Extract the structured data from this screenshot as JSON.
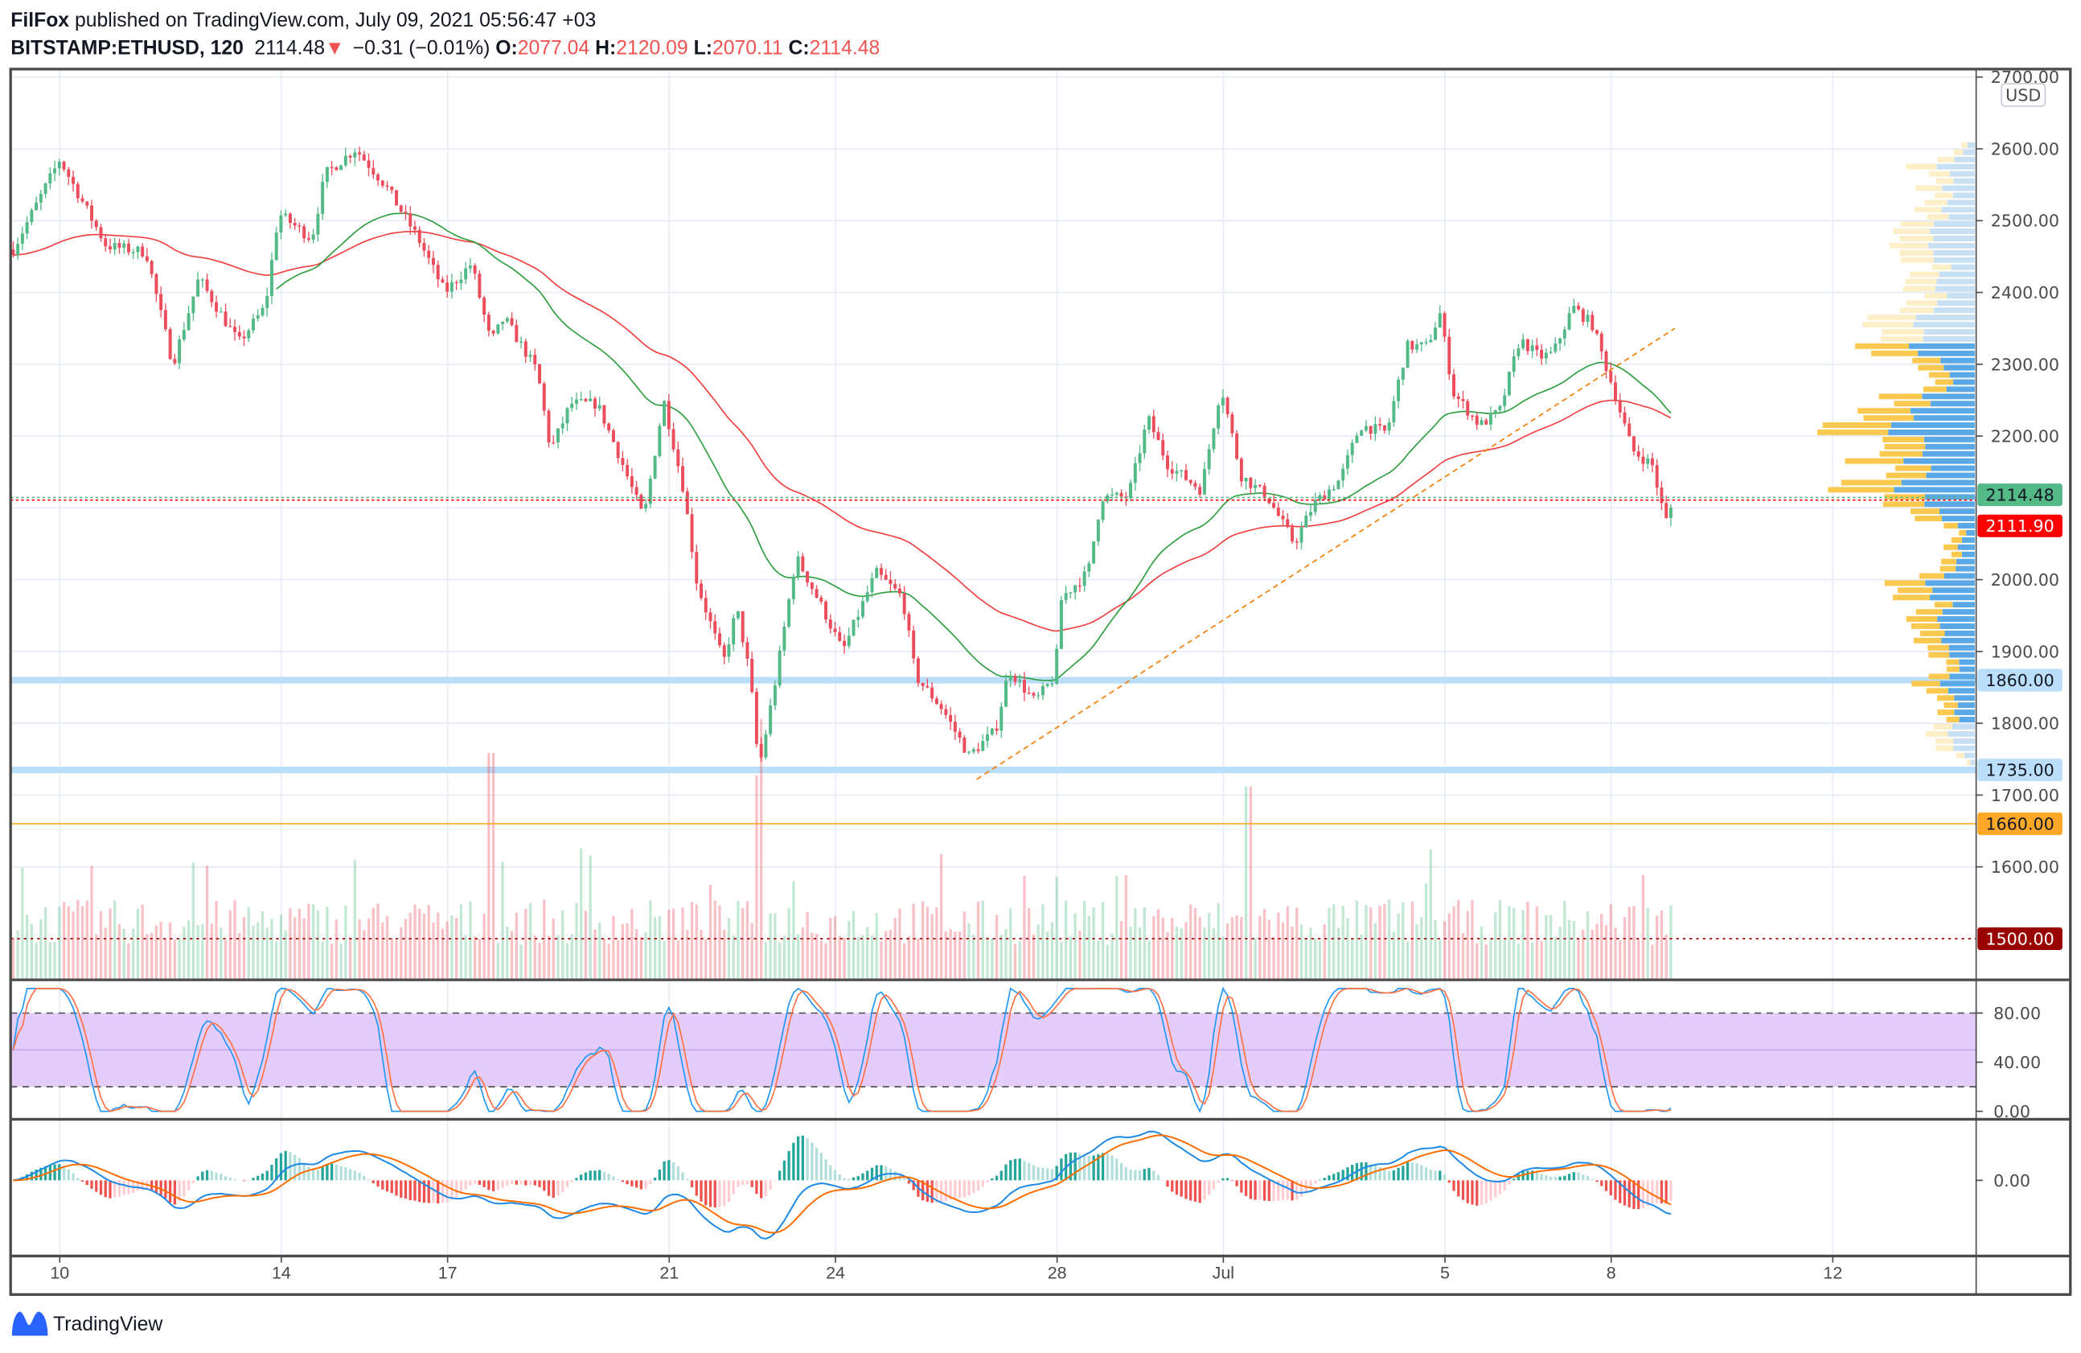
{
  "header": {
    "author": "FilFox",
    "published": " published on TradingView.com, July 09, 2021 05:56:47 +03"
  },
  "legend": {
    "symbol": "BITSTAMP:ETHUSD, 120",
    "last": "2114.48",
    "change": "−0.31 (−0.01%)",
    "o_label": "O:",
    "o": "2077.04",
    "h_label": "H:",
    "h": "2120.09",
    "l_label": "L:",
    "l": "2070.11",
    "c_label": "C:",
    "c": "2114.48"
  },
  "currency_badge": "USD",
  "footer": {
    "brand": "TradingView"
  },
  "colors": {
    "up": "#53b987",
    "down": "#eb4d5c",
    "ma_red": "#ef3f3f",
    "ma_green": "#2e9e3f",
    "trend": "#f57c00",
    "stoch_k": "#2196f3",
    "stoch_d": "#ff7043",
    "band": "#e1c4fa",
    "macd": "#1e88e5",
    "signal": "#ff6d00"
  },
  "chart_data": {
    "type": "candlestick",
    "title": "BITSTAMP:ETHUSD, 120",
    "interval_hours": 2,
    "time_unit": "day of June 2021 (31 = Jul 1)",
    "ylim": [
      1500,
      2700
    ],
    "y_ticks": [
      "2700.00",
      "2600.00",
      "2500.00",
      "2400.00",
      "2300.00",
      "2200.00",
      "2000.00",
      "1900.00",
      "1800.00",
      "1700.00",
      "1600.00"
    ],
    "y_tick_values": [
      2700,
      2600,
      2500,
      2400,
      2300,
      2200,
      2000,
      1900,
      1800,
      1700,
      1600
    ],
    "x_ticks": [
      {
        "label": "10",
        "day": 10
      },
      {
        "label": "14",
        "day": 14
      },
      {
        "label": "17",
        "day": 17
      },
      {
        "label": "21",
        "day": 21
      },
      {
        "label": "24",
        "day": 24
      },
      {
        "label": "28",
        "day": 28
      },
      {
        "label": "Jul",
        "day": 31
      },
      {
        "label": "5",
        "day": 35
      },
      {
        "label": "8",
        "day": 38
      },
      {
        "label": "12",
        "day": 42
      }
    ],
    "price_anchors": [
      [
        9.16,
        2460
      ],
      [
        10,
        2585
      ],
      [
        10.84,
        2465
      ],
      [
        11.56,
        2456
      ],
      [
        12.04,
        2300
      ],
      [
        12.51,
        2420
      ],
      [
        13.23,
        2330
      ],
      [
        13.71,
        2380
      ],
      [
        13.95,
        2510
      ],
      [
        14.55,
        2475
      ],
      [
        14.79,
        2565
      ],
      [
        15.34,
        2600
      ],
      [
        15.87,
        2550
      ],
      [
        16.47,
        2475
      ],
      [
        16.95,
        2400
      ],
      [
        17.43,
        2440
      ],
      [
        17.78,
        2330
      ],
      [
        18.02,
        2365
      ],
      [
        18.62,
        2290
      ],
      [
        18.86,
        2180
      ],
      [
        19.22,
        2245
      ],
      [
        19.7,
        2245
      ],
      [
        20.06,
        2180
      ],
      [
        20.54,
        2085
      ],
      [
        20.9,
        2250
      ],
      [
        21.26,
        2125
      ],
      [
        21.5,
        1995
      ],
      [
        21.98,
        1885
      ],
      [
        22.22,
        1960
      ],
      [
        22.46,
        1865
      ],
      [
        22.62,
        1735
      ],
      [
        22.93,
        1865
      ],
      [
        23.29,
        2032
      ],
      [
        23.77,
        1960
      ],
      [
        24.13,
        1900
      ],
      [
        24.73,
        2010
      ],
      [
        25.21,
        1975
      ],
      [
        25.45,
        1865
      ],
      [
        25.93,
        1820
      ],
      [
        26.41,
        1755
      ],
      [
        26.89,
        1790
      ],
      [
        27.13,
        1875
      ],
      [
        27.6,
        1830
      ],
      [
        27.96,
        1865
      ],
      [
        28.08,
        1975
      ],
      [
        28.56,
        2010
      ],
      [
        28.8,
        2115
      ],
      [
        29.28,
        2115
      ],
      [
        29.64,
        2225
      ],
      [
        30.0,
        2160
      ],
      [
        30.6,
        2125
      ],
      [
        30.96,
        2270
      ],
      [
        31.32,
        2145
      ],
      [
        31.8,
        2115
      ],
      [
        32.28,
        2050
      ],
      [
        32.63,
        2105
      ],
      [
        33.11,
        2140
      ],
      [
        33.47,
        2215
      ],
      [
        33.95,
        2205
      ],
      [
        34.31,
        2325
      ],
      [
        34.67,
        2325
      ],
      [
        34.91,
        2370
      ],
      [
        35.15,
        2260
      ],
      [
        35.63,
        2215
      ],
      [
        35.99,
        2235
      ],
      [
        36.35,
        2335
      ],
      [
        36.71,
        2310
      ],
      [
        36.95,
        2315
      ],
      [
        37.31,
        2380
      ],
      [
        37.66,
        2355
      ],
      [
        38.02,
        2270
      ],
      [
        38.38,
        2180
      ],
      [
        38.74,
        2160
      ],
      [
        38.98,
        2080
      ],
      [
        39.15,
        2114.48
      ]
    ],
    "volume_spikes": [
      [
        17.78,
        1.0
      ],
      [
        22.62,
        0.9
      ],
      [
        25.93,
        0.55
      ],
      [
        28.0,
        0.45
      ],
      [
        31.45,
        0.85
      ],
      [
        34.0,
        0.35
      ]
    ],
    "moving_averages": [
      {
        "name": "MA slow",
        "color": "#ef3f3f",
        "period": 80
      },
      {
        "name": "MA fast",
        "color": "#2e9e3f",
        "period": 40,
        "start_day": 13.9
      }
    ],
    "trend_line": {
      "from": [
        26.55,
        1722
      ],
      "to": [
        39.15,
        2350
      ],
      "style": "dashed"
    },
    "levels": [
      {
        "price": 1860,
        "label": "1860.00",
        "kind": "support-band"
      },
      {
        "price": 1735,
        "label": "1735.00",
        "kind": "support-band"
      },
      {
        "price": 1660,
        "label": "1660.00",
        "kind": "line"
      },
      {
        "price": 1500,
        "label": "1500.00",
        "kind": "dotted"
      },
      {
        "price": 2114.48,
        "label": "2114.48",
        "kind": "last-price"
      },
      {
        "price": 2111.9,
        "label": "2111.90",
        "kind": "marker"
      }
    ],
    "stoch_rsi": {
      "ticks": [
        "80.00",
        "40.00",
        "0.00"
      ],
      "tick_values": [
        80,
        40,
        0
      ],
      "band": [
        20,
        80
      ]
    },
    "macd": {
      "ticks": [
        "0.00"
      ],
      "tick_values": [
        0
      ]
    }
  }
}
